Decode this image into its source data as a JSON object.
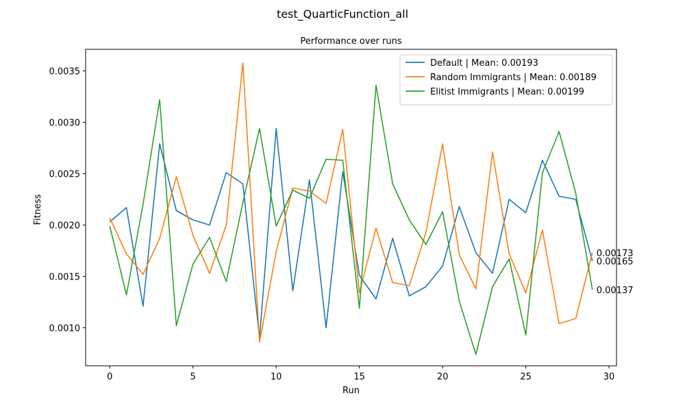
{
  "chart_data": {
    "type": "line",
    "suptitle": "test_QuarticFunction_all",
    "title": "Performance over runs",
    "xlabel": "Run",
    "ylabel": "Fitness",
    "xlim": [
      -1.45,
      30.45
    ],
    "ylim": [
      0.00063,
      0.00371
    ],
    "xticks": [
      0,
      5,
      10,
      15,
      20,
      25,
      30
    ],
    "yticks": [
      0.001,
      0.0015,
      0.002,
      0.0025,
      0.003,
      0.0035
    ],
    "ytick_labels": [
      "0.0010",
      "0.0015",
      "0.0020",
      "0.0025",
      "0.0030",
      "0.0035"
    ],
    "grid": false,
    "legend_position": "top-right",
    "x": [
      0,
      1,
      2,
      3,
      4,
      5,
      6,
      7,
      8,
      9,
      10,
      11,
      12,
      13,
      14,
      15,
      16,
      17,
      18,
      19,
      20,
      21,
      22,
      23,
      24,
      25,
      26,
      27,
      28,
      29
    ],
    "series": [
      {
        "name": "Default | Mean: 0.00193",
        "color": "#1f77b4",
        "values": [
          0.00203,
          0.00217,
          0.00121,
          0.00279,
          0.00214,
          0.00205,
          0.002,
          0.00251,
          0.0024,
          0.0009,
          0.00294,
          0.00136,
          0.00244,
          0.001,
          0.00252,
          0.00151,
          0.00128,
          0.00187,
          0.00131,
          0.0014,
          0.0016,
          0.00218,
          0.00173,
          0.00153,
          0.00225,
          0.00212,
          0.00263,
          0.00228,
          0.00225,
          0.00165
        ],
        "end_label": "0.00165"
      },
      {
        "name": "Random Immigrants | Mean: 0.00189",
        "color": "#ff7f0e",
        "values": [
          0.00207,
          0.00172,
          0.00152,
          0.00187,
          0.00247,
          0.0019,
          0.00153,
          0.002,
          0.00358,
          0.00086,
          0.00174,
          0.00236,
          0.00233,
          0.00221,
          0.00293,
          0.00134,
          0.00197,
          0.00144,
          0.00141,
          0.00193,
          0.00279,
          0.00171,
          0.00138,
          0.00271,
          0.00172,
          0.00134,
          0.00195,
          0.00104,
          0.00109,
          0.00173
        ],
        "end_label": "0.00173"
      },
      {
        "name": "Elitist Immigrants | Mean: 0.00199",
        "color": "#2ca02c",
        "values": [
          0.00199,
          0.00132,
          0.0022,
          0.00322,
          0.00102,
          0.00162,
          0.00188,
          0.00145,
          0.00222,
          0.00294,
          0.00199,
          0.00234,
          0.00226,
          0.00264,
          0.00263,
          0.00119,
          0.00336,
          0.0024,
          0.00205,
          0.00181,
          0.00213,
          0.00126,
          0.00074,
          0.0014,
          0.00167,
          0.00093,
          0.00251,
          0.00291,
          0.00231,
          0.00137
        ],
        "end_label": "0.00137"
      }
    ]
  }
}
